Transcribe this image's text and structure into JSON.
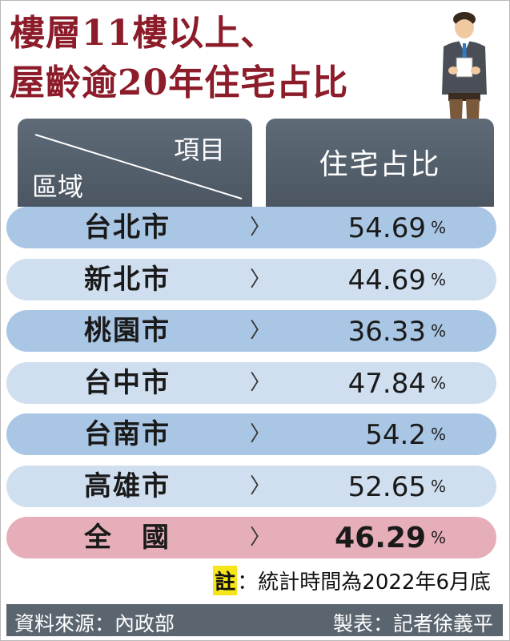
{
  "title": {
    "line1": "樓層11樓以上、",
    "line2": "屋齡逾20年住宅占比"
  },
  "header": {
    "item": "項目",
    "region": "區域",
    "share": "住宅占比"
  },
  "colors": {
    "title": "#8c1c2a",
    "header_bg": "#56616d",
    "row_dark": "#a9c6e4",
    "row_light": "#cfdff0",
    "row_total": "#e6aeb9",
    "note_highlight": "#f6e51a",
    "footer_bg": "#5b6570"
  },
  "chart_data": {
    "type": "table",
    "columns": [
      "區域",
      "住宅占比"
    ],
    "rows": [
      {
        "region": "台北市",
        "value": "54.69",
        "unit": "%",
        "arrow": "〉",
        "style": "dark"
      },
      {
        "region": "新北市",
        "value": "44.69",
        "unit": "%",
        "arrow": "〉",
        "style": "light"
      },
      {
        "region": "桃園市",
        "value": "36.33",
        "unit": "%",
        "arrow": "〉",
        "style": "dark"
      },
      {
        "region": "台中市",
        "value": "47.84",
        "unit": "%",
        "arrow": "〉",
        "style": "light"
      },
      {
        "region": "台南市",
        "value": "54.2",
        "unit": "%",
        "arrow": "〉",
        "style": "dark"
      },
      {
        "region": "高雄市",
        "value": "52.65",
        "unit": "%",
        "arrow": "〉",
        "style": "light"
      },
      {
        "region": "全　國",
        "value": "46.29",
        "unit": "%",
        "arrow": "〉",
        "style": "total"
      }
    ]
  },
  "note": {
    "key": "註",
    "text": "：統計時間為2022年6月底"
  },
  "footer": {
    "source": "資料來源：內政部",
    "credit": "製表：記者徐義平"
  },
  "icons": {
    "person": "businessman-icon",
    "arrow": "chevron-right-icon"
  }
}
